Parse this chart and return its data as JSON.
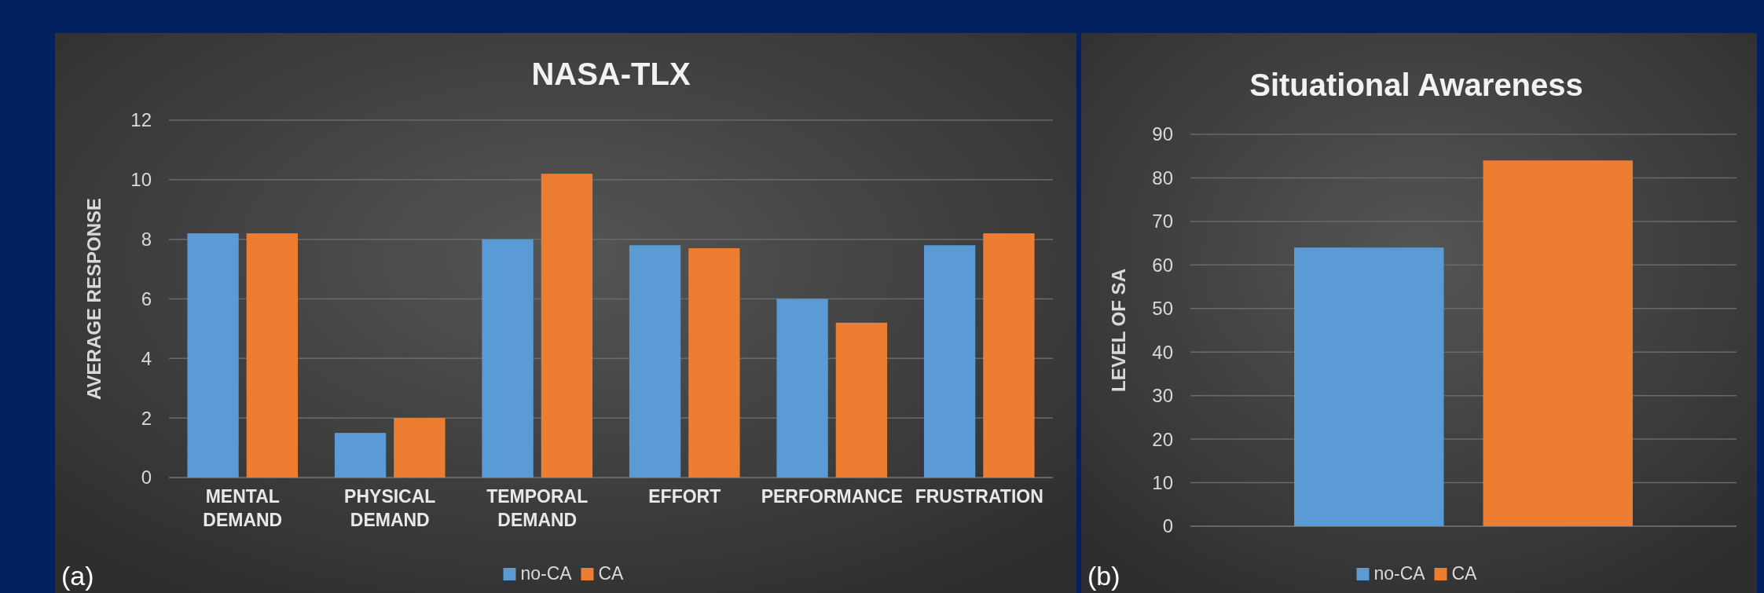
{
  "chart_data": [
    {
      "type": "bar",
      "title": "NASA-TLX",
      "ylabel": "AVERAGE RESPONSE",
      "categories": [
        "MENTAL DEMAND",
        "PHYSICAL DEMAND",
        "TEMPORAL DEMAND",
        "EFFORT",
        "PERFORMANCE",
        "FRUSTRATION"
      ],
      "series": [
        {
          "name": "no-CA",
          "color": "#5b9bd5",
          "values": [
            8.2,
            1.5,
            8.0,
            7.8,
            6.0,
            7.8
          ]
        },
        {
          "name": "CA",
          "color": "#ed7d31",
          "values": [
            8.2,
            2.0,
            10.2,
            7.7,
            5.2,
            8.2
          ]
        }
      ],
      "ylim": [
        0,
        12
      ],
      "yticks": [
        0,
        2,
        4,
        6,
        8,
        10,
        12
      ],
      "grid": "y",
      "legend": "bottom",
      "annotations": [
        "(a)"
      ]
    },
    {
      "type": "bar",
      "title": "Situational Awareness",
      "ylabel": "LEVEL OF SA",
      "categories": [
        null
      ],
      "series": [
        {
          "name": "no-CA",
          "color": "#5b9bd5",
          "values": [
            64
          ]
        },
        {
          "name": "CA",
          "color": "#ed7d31",
          "values": [
            84
          ]
        }
      ],
      "ylim": [
        0,
        90
      ],
      "yticks": [
        0,
        10,
        20,
        30,
        40,
        50,
        60,
        70,
        80,
        90
      ],
      "grid": "y",
      "legend": "bottom",
      "annotations": [
        "(b)"
      ]
    }
  ]
}
